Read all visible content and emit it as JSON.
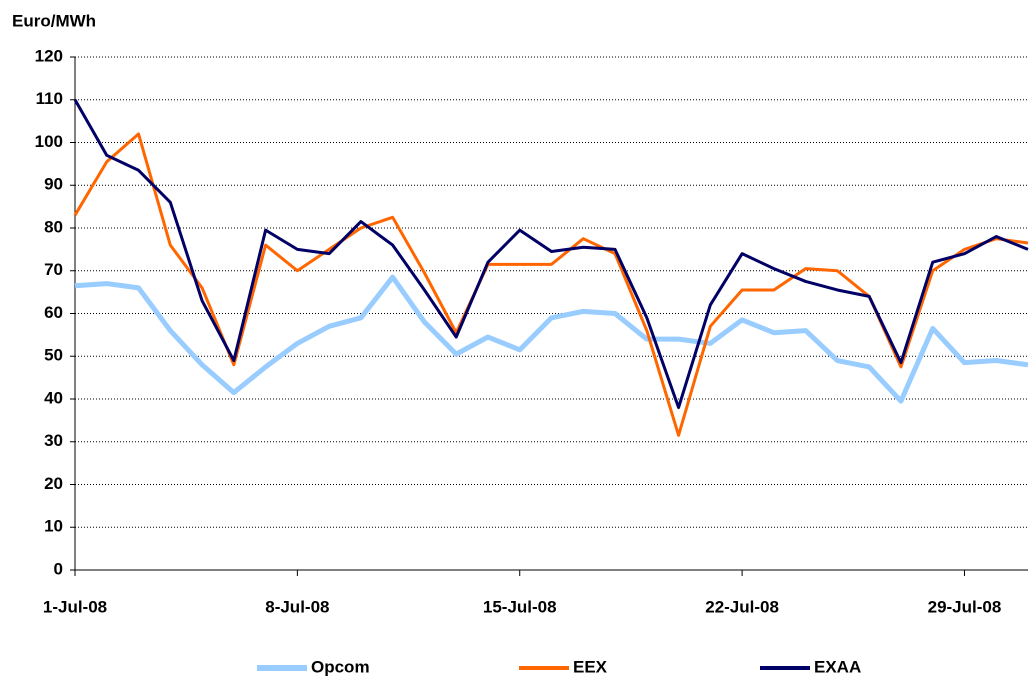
{
  "chart_data": {
    "type": "line",
    "y_label": "Euro/MWh",
    "categories": [
      "1-Jul-08",
      null,
      null,
      null,
      null,
      null,
      null,
      "8-Jul-08",
      null,
      null,
      null,
      null,
      null,
      null,
      "15-Jul-08",
      null,
      null,
      null,
      null,
      null,
      null,
      "22-Jul-08",
      null,
      null,
      null,
      null,
      null,
      null,
      "29-Jul-08",
      null,
      null
    ],
    "series": [
      {
        "name": "Opcom",
        "color": "#99ccff",
        "width": 5,
        "values": [
          66.5,
          67,
          66,
          56,
          48,
          41.5,
          47.5,
          53,
          57,
          59,
          68.5,
          58,
          50.5,
          54.5,
          51.5,
          59,
          60.5,
          60,
          54,
          54,
          53,
          58.5,
          55.5,
          56,
          49,
          47.5,
          39.5,
          56.5,
          48.5,
          49,
          48
        ]
      },
      {
        "name": "EEX",
        "color": "#ff6600",
        "width": 3,
        "values": [
          83,
          95.5,
          102,
          76,
          66,
          48,
          76,
          70,
          75,
          80,
          82.5,
          69.5,
          55.5,
          71.5,
          71.5,
          71.5,
          77.5,
          74,
          56,
          31.5,
          57,
          65.5,
          65.5,
          70.5,
          70,
          64,
          47.5,
          70,
          75,
          77.5,
          76.5
        ]
      },
      {
        "name": "EXAA",
        "color": "#000066",
        "width": 3,
        "values": [
          110,
          97,
          93.5,
          86,
          63,
          49,
          79.5,
          75,
          74,
          81.5,
          76,
          65.5,
          54.5,
          72,
          79.5,
          74.5,
          75.5,
          75,
          59,
          38,
          62,
          74,
          70.5,
          67.5,
          65.5,
          64,
          48.5,
          72,
          74,
          78,
          75
        ]
      }
    ],
    "ylim": [
      0,
      120
    ],
    "yticks": [
      0,
      10,
      20,
      30,
      40,
      50,
      60,
      70,
      80,
      90,
      100,
      110,
      120
    ],
    "grid": true,
    "legend": "bottom"
  }
}
